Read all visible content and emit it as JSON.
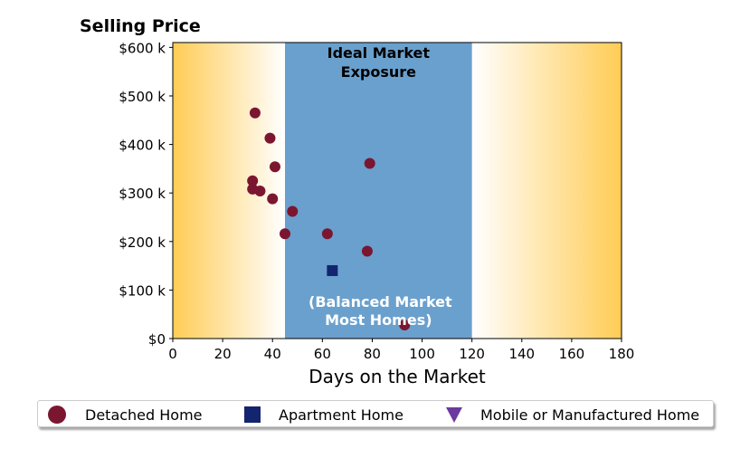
{
  "chart_data": {
    "type": "scatter",
    "title": "Selling Price",
    "xlabel": "Days on the Market",
    "ylabel": "",
    "xlim": [
      0,
      180
    ],
    "ylim": [
      0,
      610000
    ],
    "x_ticks": [
      0,
      20,
      40,
      60,
      80,
      100,
      120,
      140,
      160,
      180
    ],
    "x_tick_labels": [
      "0",
      "20",
      "40",
      "60",
      "80",
      "100",
      "120",
      "140",
      "160",
      "180"
    ],
    "y_ticks": [
      0,
      100000,
      200000,
      300000,
      400000,
      500000,
      600000
    ],
    "y_tick_labels": [
      "$0",
      "$100 k",
      "$200 k",
      "$300 k",
      "$400 k",
      "$500 k",
      "$600 k"
    ],
    "grid": false,
    "ideal_band": {
      "x_range": [
        45,
        120
      ],
      "color": "#6aa0cd",
      "label_line1": "Ideal Market",
      "label_line2": "Exposure",
      "bottom_line1": "(Balanced Market",
      "bottom_line2": "Most Homes)"
    },
    "background_gradient_color": "#ffcc55",
    "series": [
      {
        "name": "Detached Home",
        "marker": "circle",
        "color": "#7b1631",
        "points": [
          {
            "x": 33,
            "y": 465000
          },
          {
            "x": 39,
            "y": 413000
          },
          {
            "x": 41,
            "y": 354000
          },
          {
            "x": 32,
            "y": 325000
          },
          {
            "x": 32,
            "y": 308000
          },
          {
            "x": 35,
            "y": 304000
          },
          {
            "x": 40,
            "y": 288000
          },
          {
            "x": 48,
            "y": 262000
          },
          {
            "x": 45,
            "y": 216000
          },
          {
            "x": 62,
            "y": 216000
          },
          {
            "x": 79,
            "y": 361000
          },
          {
            "x": 78,
            "y": 180000
          },
          {
            "x": 93,
            "y": 28000
          }
        ]
      },
      {
        "name": "Apartment Home",
        "marker": "square",
        "color": "#13256e",
        "points": [
          {
            "x": 64,
            "y": 140000
          }
        ]
      },
      {
        "name": "Mobile or Manufactured Home",
        "marker": "triangle-down",
        "color": "#6b3aa0",
        "points": []
      }
    ],
    "legend_position": "bottom-center"
  }
}
